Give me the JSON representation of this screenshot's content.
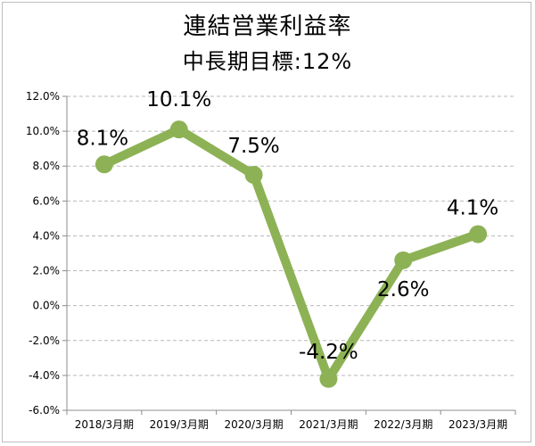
{
  "chart_data": {
    "type": "line",
    "title": "連結営業利益率",
    "subtitle": "中長期目標:12%",
    "categories": [
      "2018/3月期",
      "2019/3月期",
      "2020/3月期",
      "2021/3月期",
      "2022/3月期",
      "2023/3月期"
    ],
    "series": [
      {
        "values": [
          8.1,
          10.1,
          7.5,
          -4.2,
          2.6,
          4.1
        ],
        "labels": [
          "8.1%",
          "10.1%",
          "7.5%",
          "-4.2%",
          "2.6%",
          "4.1%"
        ]
      }
    ],
    "ylim": [
      -6.0,
      12.0
    ],
    "yticks": [
      12.0,
      10.0,
      8.0,
      6.0,
      4.0,
      2.0,
      0.0,
      -2.0,
      -4.0,
      -6.0
    ],
    "ytick_labels": [
      "12.0%",
      "10.0%",
      "8.0%",
      "6.0%",
      "4.0%",
      "2.0%",
      "0.0%",
      "-2.0%",
      "-4.0%",
      "-6.0%"
    ],
    "grid": "horizontal-dashed",
    "legend": "none",
    "colors": {
      "line": "#8db255",
      "grid": "#b9b9b9",
      "axis": "#8c8c8c"
    }
  }
}
